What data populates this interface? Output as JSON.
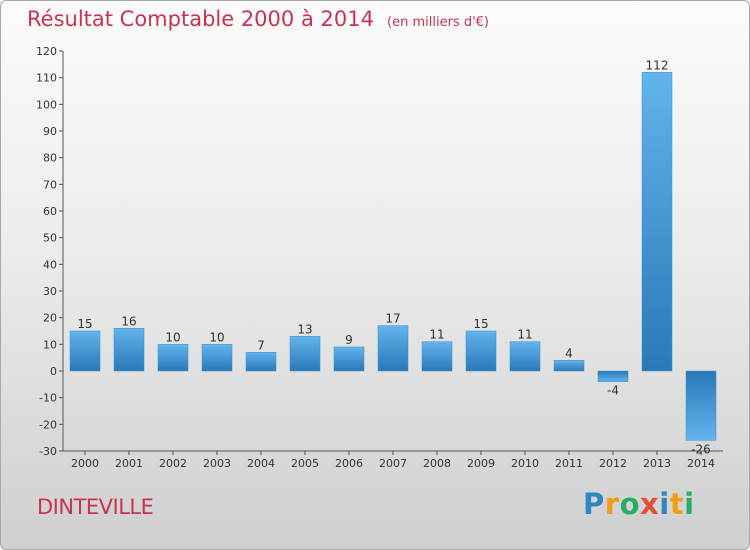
{
  "title": "Résultat Comptable 2000 à 2014",
  "unit": "(en milliers d'€)",
  "commune": "DINTEVILLE",
  "logo": {
    "letters": [
      "P",
      "r",
      "o",
      "x",
      "i",
      "t",
      "i"
    ],
    "colors": [
      "#2e86c1",
      "#f39c12",
      "#27ae60",
      "#e74c3c",
      "#2e86c1",
      "#f39c12",
      "#27ae60"
    ]
  },
  "chart_data": {
    "type": "bar",
    "title": "Résultat Comptable 2000 à 2014",
    "ylabel": "",
    "xlabel": "",
    "categories": [
      "2000",
      "2001",
      "2002",
      "2003",
      "2004",
      "2005",
      "2006",
      "2007",
      "2008",
      "2009",
      "2010",
      "2011",
      "2012",
      "2013",
      "2014"
    ],
    "values": [
      15,
      16,
      10,
      10,
      7,
      13,
      9,
      17,
      11,
      15,
      11,
      4,
      -4,
      112,
      -26
    ],
    "ylim": [
      -30,
      120
    ],
    "yticks": [
      -30,
      -20,
      -10,
      0,
      10,
      20,
      30,
      40,
      50,
      60,
      70,
      80,
      90,
      100,
      110,
      120
    ],
    "grid": false,
    "bar_color": "#4aa3e0"
  }
}
